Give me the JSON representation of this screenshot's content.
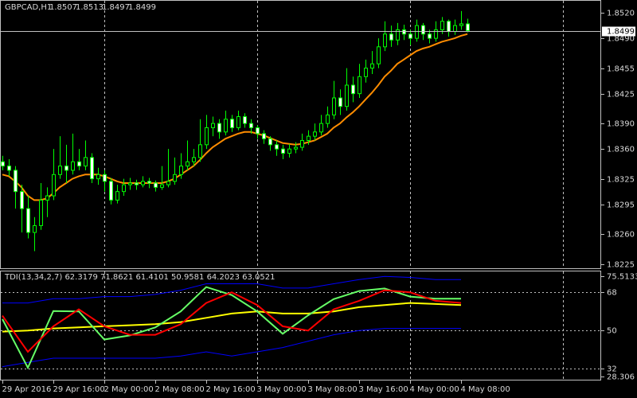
{
  "chart_data": [
    {
      "type": "candlestick",
      "symbol": "GBPCAD,H1",
      "header_ohlc": [
        1.8507,
        1.8513,
        1.8497,
        1.8499
      ],
      "up_color": "#000000",
      "down_color": "#ffffff",
      "wick_color": "#00ff00",
      "ohlc": [
        [
          1.8345,
          1.8352,
          1.8335,
          1.834
        ],
        [
          1.834,
          1.8348,
          1.8328,
          1.8335
        ],
        [
          1.8335,
          1.834,
          1.829,
          1.831
        ],
        [
          1.831,
          1.8318,
          1.8262,
          1.829
        ],
        [
          1.829,
          1.8305,
          1.8255,
          1.8262
        ],
        [
          1.8262,
          1.828,
          1.824,
          1.827
        ],
        [
          1.827,
          1.832,
          1.8265,
          1.83
        ],
        [
          1.83,
          1.8315,
          1.828,
          1.8305
        ],
        [
          1.8305,
          1.836,
          1.83,
          1.833
        ],
        [
          1.833,
          1.8375,
          1.8325,
          1.834
        ],
        [
          1.834,
          1.8365,
          1.832,
          1.8335
        ],
        [
          1.8335,
          1.8378,
          1.833,
          1.8345
        ],
        [
          1.8345,
          1.836,
          1.8335,
          1.834
        ],
        [
          1.834,
          1.837,
          1.8335,
          1.835
        ],
        [
          1.835,
          1.8355,
          1.832,
          1.8325
        ],
        [
          1.8325,
          1.8338,
          1.8318,
          1.833
        ],
        [
          1.833,
          1.8335,
          1.831,
          1.8322
        ],
        [
          1.8322,
          1.8326,
          1.8295,
          1.83
        ],
        [
          1.83,
          1.8318,
          1.8296,
          1.831
        ],
        [
          1.831,
          1.8325,
          1.8305,
          1.8318
        ],
        [
          1.8318,
          1.8326,
          1.8312,
          1.832
        ],
        [
          1.832,
          1.8324,
          1.8312,
          1.8318
        ],
        [
          1.8318,
          1.8328,
          1.8315,
          1.8322
        ],
        [
          1.8322,
          1.8326,
          1.8314,
          1.832
        ],
        [
          1.832,
          1.8323,
          1.831,
          1.8315
        ],
        [
          1.8315,
          1.834,
          1.8312,
          1.8318
        ],
        [
          1.8318,
          1.836,
          1.8315,
          1.8322
        ],
        [
          1.8322,
          1.835,
          1.8318,
          1.833
        ],
        [
          1.833,
          1.8355,
          1.8325,
          1.834
        ],
        [
          1.834,
          1.837,
          1.8335,
          1.8345
        ],
        [
          1.8345,
          1.836,
          1.834,
          1.835
        ],
        [
          1.835,
          1.8395,
          1.8345,
          1.8365
        ],
        [
          1.8365,
          1.84,
          1.836,
          1.8385
        ],
        [
          1.8385,
          1.8398,
          1.8375,
          1.839
        ],
        [
          1.839,
          1.8395,
          1.8372,
          1.838
        ],
        [
          1.838,
          1.8405,
          1.8376,
          1.8395
        ],
        [
          1.8395,
          1.84,
          1.838,
          1.8385
        ],
        [
          1.8385,
          1.8405,
          1.8382,
          1.8398
        ],
        [
          1.8398,
          1.8402,
          1.8385,
          1.839
        ],
        [
          1.839,
          1.8395,
          1.8378,
          1.8385
        ],
        [
          1.8385,
          1.8388,
          1.8372,
          1.8378
        ],
        [
          1.8378,
          1.8382,
          1.8366,
          1.8372
        ],
        [
          1.8372,
          1.8375,
          1.8358,
          1.8365
        ],
        [
          1.8365,
          1.837,
          1.8352,
          1.836
        ],
        [
          1.836,
          1.8365,
          1.8348,
          1.8355
        ],
        [
          1.8355,
          1.8366,
          1.835,
          1.836
        ],
        [
          1.836,
          1.8368,
          1.8355,
          1.8362
        ],
        [
          1.8362,
          1.8378,
          1.8358,
          1.837
        ],
        [
          1.837,
          1.8382,
          1.8365,
          1.8375
        ],
        [
          1.8375,
          1.839,
          1.837,
          1.838
        ],
        [
          1.838,
          1.84,
          1.8376,
          1.839
        ],
        [
          1.839,
          1.841,
          1.8385,
          1.84
        ],
        [
          1.84,
          1.844,
          1.8395,
          1.842
        ],
        [
          1.842,
          1.843,
          1.84,
          1.841
        ],
        [
          1.841,
          1.8455,
          1.8405,
          1.8435
        ],
        [
          1.8435,
          1.8445,
          1.8415,
          1.8425
        ],
        [
          1.8425,
          1.846,
          1.842,
          1.8445
        ],
        [
          1.8445,
          1.8465,
          1.8438,
          1.8455
        ],
        [
          1.8455,
          1.8475,
          1.8448,
          1.846
        ],
        [
          1.846,
          1.849,
          1.8455,
          1.848
        ],
        [
          1.848,
          1.851,
          1.8475,
          1.8495
        ],
        [
          1.8495,
          1.8505,
          1.848,
          1.8488
        ],
        [
          1.8488,
          1.8508,
          1.8482,
          1.85
        ],
        [
          1.85,
          1.8506,
          1.8488,
          1.8495
        ],
        [
          1.8495,
          1.85,
          1.8482,
          1.849
        ],
        [
          1.849,
          1.8512,
          1.8486,
          1.8505
        ],
        [
          1.8505,
          1.8508,
          1.8488,
          1.8495
        ],
        [
          1.8495,
          1.85,
          1.8484,
          1.849
        ],
        [
          1.849,
          1.851,
          1.8486,
          1.85
        ],
        [
          1.85,
          1.8515,
          1.8495,
          1.851
        ],
        [
          1.851,
          1.8512,
          1.8492,
          1.8498
        ],
        [
          1.8498,
          1.8512,
          1.8494,
          1.8505
        ],
        [
          1.8505,
          1.8522,
          1.85,
          1.8507
        ],
        [
          1.8507,
          1.8513,
          1.8497,
          1.8499
        ]
      ],
      "series": [
        {
          "color": "#ff8c00",
          "values": [
            1.833,
            1.8328,
            1.8322,
            1.8315,
            1.8305,
            1.83,
            1.83,
            1.8302,
            1.8308,
            1.8315,
            1.832,
            1.8325,
            1.8328,
            1.833,
            1.833,
            1.833,
            1.8328,
            1.8325,
            1.8322,
            1.832,
            1.832,
            1.832,
            1.832,
            1.832,
            1.832,
            1.832,
            1.8322,
            1.8325,
            1.833,
            1.8335,
            1.834,
            1.8347,
            1.8355,
            1.8362,
            1.8367,
            1.8372,
            1.8375,
            1.8378,
            1.838,
            1.838,
            1.8378,
            1.8376,
            1.8373,
            1.837,
            1.8367,
            1.8366,
            1.8365,
            1.8366,
            1.8368,
            1.837,
            1.8374,
            1.8378,
            1.8385,
            1.839,
            1.8397,
            1.8403,
            1.841,
            1.8418,
            1.8426,
            1.8435,
            1.8445,
            1.8452,
            1.846,
            1.8465,
            1.847,
            1.8475,
            1.8478,
            1.848,
            1.8483,
            1.8486,
            1.8488,
            1.849,
            1.8493,
            1.8495
          ]
        }
      ],
      "bid": 1.8499,
      "ylim": [
        1.8219,
        1.8535
      ],
      "yticks": [
        {
          "value": 1.852,
          "label": "1.8520"
        },
        {
          "value": 1.849,
          "label": "1.8490"
        },
        1.8455,
        1.8425,
        {
          "value": 1.839,
          "label": "1.8390"
        },
        {
          "value": 1.836,
          "label": "1.8360"
        },
        1.8325,
        1.8295,
        {
          "value": 1.826,
          "label": "1.8260"
        },
        1.8225
      ],
      "xticks": [
        {
          "value": 0,
          "label": "29 Apr 2016"
        },
        {
          "value": 8,
          "label": "29 Apr 16:00"
        },
        {
          "value": 16,
          "label": "2 May 00:00"
        },
        {
          "value": 24,
          "label": "2 May 08:00"
        },
        {
          "value": 32,
          "label": "2 May 16:00"
        },
        {
          "value": 40,
          "label": "3 May 00:00"
        },
        {
          "value": 48,
          "label": "3 May 08:00"
        },
        {
          "value": 56,
          "label": "3 May 16:00"
        },
        {
          "value": 64,
          "label": "4 May 00:00"
        },
        {
          "value": 72,
          "label": "4 May 08:00"
        }
      ],
      "separators": [
        16,
        40,
        64,
        88
      ]
    },
    {
      "type": "line",
      "title": "TDI(13,34,2,7) 62.3179 71.8621 61.4101 50.9581 64.2023 63.0521",
      "x": [
        0,
        4,
        8,
        12,
        16,
        20,
        24,
        28,
        32,
        36,
        40,
        44,
        48,
        52,
        56,
        60,
        64,
        68,
        72
      ],
      "series": [
        {
          "color": "#0000ff",
          "values": [
            63,
            63,
            65,
            65,
            66,
            66,
            67,
            69,
            72,
            72,
            72,
            70,
            70,
            72,
            74,
            75.5,
            75,
            74,
            74
          ]
        },
        {
          "color": "#0000ff",
          "values": [
            33,
            35,
            37,
            37,
            37,
            37,
            37,
            38,
            40,
            38,
            40,
            42,
            45,
            48,
            50,
            51,
            51,
            51,
            51
          ]
        },
        {
          "color": "#ffff00",
          "values": [
            49.5,
            50,
            51,
            51.5,
            52,
            52.5,
            53,
            54,
            56,
            58,
            59,
            58,
            58,
            59,
            61,
            62,
            63,
            62.5,
            62
          ]
        },
        {
          "color": "#66ff66",
          "values": [
            55.4,
            32.5,
            59.2,
            59,
            45.8,
            47.7,
            51.5,
            59,
            70.5,
            66.7,
            59,
            48.5,
            57.2,
            64.8,
            68.6,
            69.8,
            66,
            65,
            65
          ]
        },
        {
          "color": "#ff0000",
          "values": [
            57,
            40,
            52,
            60,
            52,
            48,
            48,
            53,
            63,
            68,
            62,
            52,
            50,
            60,
            64,
            69,
            68,
            64,
            63
          ]
        }
      ],
      "ylim": [
        26.5,
        78.2
      ],
      "yticks": [
        75.5133,
        68,
        50,
        32,
        28.306
      ],
      "levels": [
        68,
        50,
        32
      ]
    }
  ]
}
